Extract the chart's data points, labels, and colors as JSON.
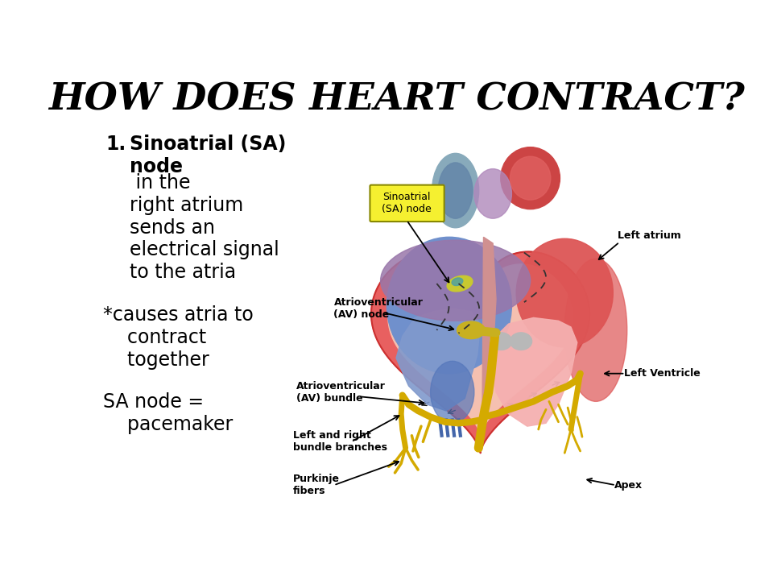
{
  "title": "HOW DOES HEART CONTRACT?",
  "title_fontsize": 34,
  "bg_color": "#ffffff",
  "text_color": "#000000",
  "label_sa_node": "Sinoatrial\n(SA) node",
  "label_av_node": "Atrioventricular\n(AV) node",
  "label_left_atrium": "Left atrium",
  "label_left_ventricle": "Left Ventricle",
  "label_av_bundle": "Atrioventricular\n(AV) bundle",
  "label_bundle_branches": "Left and right\nbundle branches",
  "label_purkinje": "Purkinje\nfibers",
  "label_apex": "Apex",
  "color_heart_outer": "#d44040",
  "color_heart_inner_wall": "#f0a0a0",
  "color_right_atrium": "#6688cc",
  "color_right_ventricle": "#7799dd",
  "color_left_atrium": "#dd5555",
  "color_left_ventricle": "#f0b0b0",
  "color_pericardium": "#9977aa",
  "color_aorta_blue": "#7799bb",
  "color_aorta_red": "#cc4444",
  "color_sa_node": "#b8b832",
  "color_av_node": "#c8b020",
  "color_bundle": "#d4aa00",
  "color_septum": "#c8a0a0",
  "color_valve": "#aaaaaa",
  "color_muscle": "#cc6666"
}
